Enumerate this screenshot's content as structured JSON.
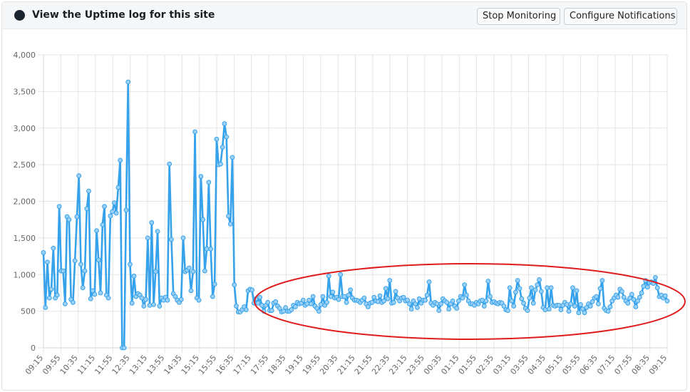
{
  "header": {
    "title": "View the Uptime log for this site",
    "stop_button": "Stop Monitoring",
    "configure_button": "Configure Notifications"
  },
  "colors": {
    "line": "#36a2eb",
    "point_fill": "#9ad0f5",
    "annotation": "#e01b1b",
    "status_dot": "#1c2330"
  },
  "chart_data": {
    "type": "line",
    "ylim": [
      0,
      4000
    ],
    "yticks": [
      "0",
      "500",
      "1,000",
      "1,500",
      "2,000",
      "2,500",
      "3,000",
      "3,500",
      "4,000"
    ],
    "x_labels": [
      "09:15",
      "09:55",
      "10:35",
      "11:15",
      "11:55",
      "12:35",
      "13:15",
      "13:55",
      "14:35",
      "15:15",
      "15:55",
      "16:35",
      "17:15",
      "17:55",
      "18:35",
      "19:15",
      "19:55",
      "20:35",
      "21:15",
      "21:55",
      "22:35",
      "23:15",
      "23:55",
      "00:35",
      "01:15",
      "01:55",
      "02:35",
      "03:15",
      "03:55",
      "04:35",
      "05:15",
      "05:55",
      "06:35",
      "07:15",
      "07:55",
      "08:35",
      "09:15"
    ],
    "grid": true,
    "legend": "none",
    "annotation": "red ellipse highlighting the lower, stable response times from 17:55 to 09:15",
    "series": [
      {
        "values": [
          1300,
          550,
          1170,
          680,
          800,
          1360,
          680,
          720,
          1930,
          1050,
          1050,
          600,
          1790,
          1750,
          660,
          620,
          1190,
          1790,
          2350,
          1140,
          820,
          1050,
          1900,
          2140,
          670,
          780,
          730,
          1600,
          1200,
          750,
          1680,
          1930,
          720,
          680,
          1800,
          1860,
          1980,
          1840,
          2190,
          2560,
          0,
          0,
          1880,
          3630,
          1140,
          610,
          980,
          700,
          740,
          720,
          680,
          570,
          660,
          1500,
          580,
          1710,
          590,
          1040,
          1590,
          570,
          680,
          650,
          690,
          650,
          2510,
          1480,
          740,
          700,
          650,
          620,
          660,
          1500,
          1040,
          1060,
          1090,
          780,
          1040,
          2950,
          680,
          650,
          2340,
          1750,
          1050,
          1350,
          2260,
          1350,
          700,
          870,
          2850,
          2500,
          2510,
          2740,
          3060,
          2880,
          1800,
          1690,
          2600,
          860,
          570,
          490,
          490,
          520,
          560,
          520,
          780,
          800,
          790,
          610,
          670,
          610,
          690,
          580,
          500,
          580,
          620,
          510,
          510,
          610,
          630,
          570,
          540,
          490,
          500,
          550,
          500,
          500,
          520,
          580,
          560,
          620,
          600,
          610,
          650,
          580,
          600,
          650,
          600,
          700,
          570,
          540,
          500,
          590,
          700,
          580,
          620,
          980,
          700,
          760,
          680,
          690,
          660,
          1000,
          700,
          700,
          620,
          720,
          790,
          680,
          650,
          650,
          640,
          620,
          650,
          680,
          600,
          560,
          610,
          620,
          690,
          640,
          630,
          710,
          620,
          640,
          810,
          670,
          920,
          610,
          620,
          770,
          680,
          640,
          680,
          690,
          640,
          650,
          600,
          530,
          640,
          600,
          550,
          670,
          610,
          650,
          650,
          720,
          900,
          610,
          580,
          620,
          600,
          510,
          600,
          670,
          640,
          620,
          530,
          600,
          640,
          570,
          540,
          640,
          700,
          680,
          860,
          720,
          640,
          600,
          600,
          580,
          620,
          600,
          640,
          650,
          570,
          640,
          910,
          700,
          620,
          630,
          610,
          600,
          620,
          610,
          570,
          520,
          510,
          820,
          640,
          570,
          760,
          920,
          810,
          670,
          610,
          540,
          510,
          680,
          820,
          610,
          790,
          860,
          930,
          770,
          550,
          520,
          820,
          530,
          820,
          580,
          570,
          580,
          580,
          520,
          580,
          620,
          590,
          500,
          600,
          820,
          570,
          780,
          480,
          590,
          530,
          480,
          550,
          600,
          570,
          630,
          680,
          700,
          600,
          810,
          920,
          540,
          510,
          500,
          560,
          640,
          680,
          720,
          690,
          800,
          770,
          690,
          640,
          610,
          680,
          730,
          660,
          560,
          640,
          690,
          750,
          840,
          920,
          830,
          890,
          900,
          880,
          960,
          820,
          700,
          720,
          680,
          710,
          640
        ]
      }
    ]
  }
}
